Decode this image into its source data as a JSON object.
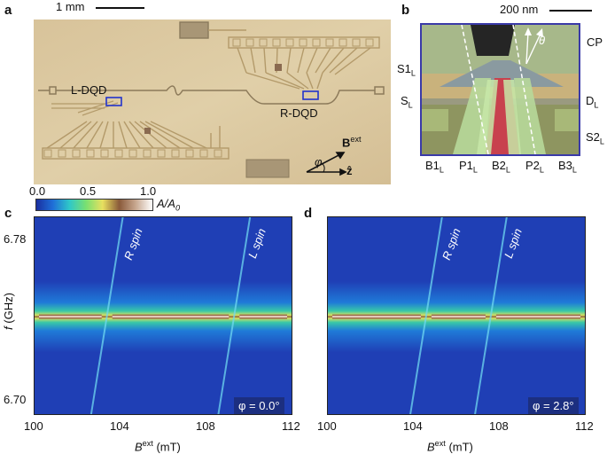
{
  "panel_labels": {
    "a": "a",
    "b": "b",
    "c": "c",
    "d": "d"
  },
  "panel_a": {
    "scalebar": "1 mm",
    "left_dqd": "L-DQD",
    "right_dqd": "R-DQD",
    "b_label": "B",
    "b_sup": "ext",
    "phi": "φ",
    "z_label": "ẑ"
  },
  "panel_b": {
    "scalebar": "200 nm",
    "theta": "θ",
    "cp": "CP",
    "s1": "S1",
    "s1_sub": "L",
    "s": "S",
    "s_sub": "L",
    "d": "D",
    "d_sub": "L",
    "s2": "S2",
    "s2_sub": "L",
    "bottom": [
      {
        "t": "B1",
        "s": "L"
      },
      {
        "t": "P1",
        "s": "L"
      },
      {
        "t": "B2",
        "s": "L"
      },
      {
        "t": "P2",
        "s": "L"
      },
      {
        "t": "B3",
        "s": "L"
      }
    ]
  },
  "colorbar": {
    "ticks": [
      "0.0",
      "0.5",
      "1.0"
    ],
    "label": "A/A",
    "label_sub": "0",
    "colors": [
      "#1a2fa0",
      "#1f6fd8",
      "#2fc8c8",
      "#7ae070",
      "#e8e060",
      "#8a5a3a",
      "#c8a890",
      "#ffffff"
    ]
  },
  "chart_data": [
    {
      "type": "heatmap",
      "panel": "c",
      "xlabel": "B",
      "xlabel_sup": "ext",
      "xunit": "(mT)",
      "ylabel": "f",
      "yunit": "(GHz)",
      "xlim": [
        100,
        112
      ],
      "ylim": [
        6.695,
        6.79
      ],
      "xticks": [
        "100",
        "104",
        "108",
        "112"
      ],
      "yticks": [
        "6.78",
        "6.70"
      ],
      "annotations": [
        "R spin",
        "L spin"
      ],
      "phi_label": "φ = 0.0°",
      "resonance_f": 6.742,
      "crossings_mT": [
        103.4,
        109.3
      ]
    },
    {
      "type": "heatmap",
      "panel": "d",
      "xlabel": "B",
      "xlabel_sup": "ext",
      "xunit": "(mT)",
      "xlim": [
        100,
        112
      ],
      "ylim": [
        6.695,
        6.79
      ],
      "xticks": [
        "100",
        "104",
        "108",
        "112"
      ],
      "annotations": [
        "R spin",
        "L spin"
      ],
      "phi_label": "φ = 2.8°",
      "resonance_f": 6.742,
      "crossings_mT": [
        104.6,
        107.6
      ]
    }
  ]
}
